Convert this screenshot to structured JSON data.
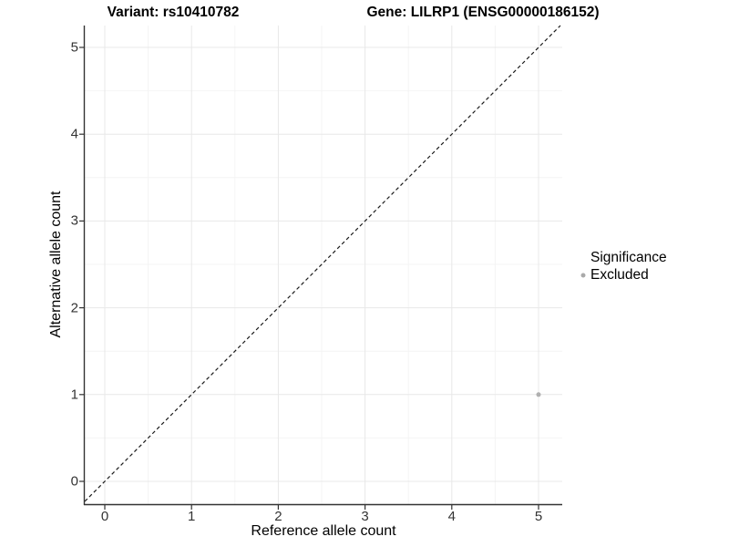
{
  "titles": {
    "variant": "Variant: rs10410782",
    "gene": "Gene: LILRP1 (ENSG00000186152)"
  },
  "chart_data": {
    "type": "scatter",
    "title_left": "Variant: rs10410782",
    "title_right": "Gene: LILRP1 (ENSG00000186152)",
    "xlabel": "Reference allele count",
    "ylabel": "Alternative allele count",
    "xlim": [
      -0.25,
      5.27
    ],
    "ylim": [
      -0.26,
      5.25
    ],
    "x_ticks": [
      0,
      1,
      2,
      3,
      4,
      5
    ],
    "y_ticks": [
      0,
      1,
      2,
      3,
      4,
      5
    ],
    "minor_ticks": [
      0.5,
      1.5,
      2.5,
      3.5,
      4.5
    ],
    "grid": true,
    "reference_line": {
      "style": "dashed",
      "slope": 1,
      "intercept": 0
    },
    "series": [
      {
        "name": "Excluded",
        "color": "#b0b0b0",
        "points": [
          {
            "x": 5,
            "y": 1
          }
        ]
      }
    ],
    "legend": {
      "title": "Significance",
      "position": "right",
      "items": [
        {
          "label": "Excluded",
          "color": "#aaaaaa"
        }
      ]
    }
  },
  "colors": {
    "background": "#ffffff",
    "major_grid": "#e8e8e8",
    "minor_grid": "#f4f4f4",
    "axis_line": "#333333",
    "tick_mark": "#333333",
    "dashed_line": "#1a1a1a",
    "point": "#b0b0b0",
    "tick_text": "#333333"
  }
}
